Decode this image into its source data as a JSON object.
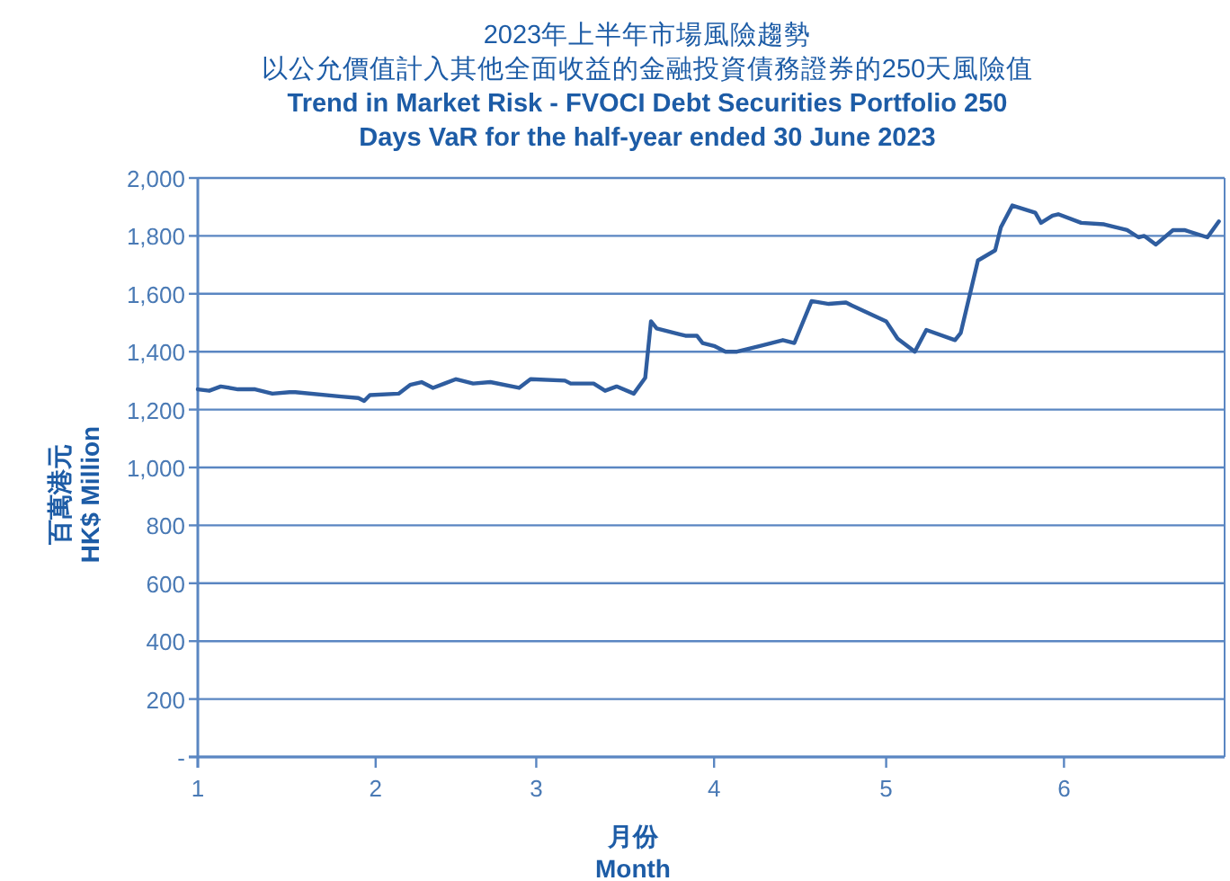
{
  "chart_data": {
    "type": "line",
    "title": "2023年上半年市場風險趨勢",
    "subtitle": "以公允價值計入其他全面收益的金融投資債務證券的250天風險值\nTrend in Market Risk - FVOCI Debt Securities Portfolio 250\nDays VaR for the half-year ended 30 June 2023",
    "xlabel": "月份\nMonth",
    "ylabel": "百萬港元\nHK$ Million",
    "x": [
      "2023-01-01",
      "2023-01-03",
      "2023-01-05",
      "2023-01-08",
      "2023-01-11",
      "2023-01-14",
      "2023-01-17",
      "2023-01-18",
      "2023-01-26",
      "2023-01-29",
      "2023-01-30",
      "2023-01-31",
      "2023-02-05",
      "2023-02-07",
      "2023-02-09",
      "2023-02-11",
      "2023-02-13",
      "2023-02-15",
      "2023-02-18",
      "2023-02-21",
      "2023-02-26",
      "2023-02-28",
      "2023-03-06",
      "2023-03-07",
      "2023-03-11",
      "2023-03-13",
      "2023-03-15",
      "2023-03-18",
      "2023-03-20",
      "2023-03-21",
      "2023-03-22",
      "2023-03-26",
      "2023-03-27",
      "2023-03-29",
      "2023-03-30",
      "2023-04-01",
      "2023-04-03",
      "2023-04-05",
      "2023-04-09",
      "2023-04-13",
      "2023-04-15",
      "2023-04-18",
      "2023-04-21",
      "2023-04-24",
      "2023-04-25",
      "2023-05-01",
      "2023-05-03",
      "2023-05-06",
      "2023-05-08",
      "2023-05-13",
      "2023-05-14",
      "2023-05-17",
      "2023-05-20",
      "2023-05-21",
      "2023-05-23",
      "2023-05-27",
      "2023-05-28",
      "2023-05-30",
      "2023-05-31",
      "2023-06-04",
      "2023-06-08",
      "2023-06-12",
      "2023-06-14",
      "2023-06-15",
      "2023-06-17",
      "2023-06-20",
      "2023-06-22",
      "2023-06-26",
      "2023-06-28"
    ],
    "series": [
      {
        "color": "#2f5d9f",
        "values": [
          1270,
          1265,
          1280,
          1270,
          1270,
          1255,
          1260,
          1260,
          1245,
          1240,
          1230,
          1250,
          1255,
          1285,
          1295,
          1275,
          1290,
          1305,
          1290,
          1295,
          1275,
          1305,
          1300,
          1290,
          1290,
          1265,
          1280,
          1255,
          1310,
          1505,
          1480,
          1460,
          1455,
          1455,
          1430,
          1420,
          1400,
          1400,
          1420,
          1440,
          1430,
          1575,
          1565,
          1570,
          1560,
          1505,
          1445,
          1400,
          1475,
          1440,
          1465,
          1715,
          1750,
          1830,
          1905,
          1880,
          1845,
          1870,
          1875,
          1845,
          1840,
          1820,
          1795,
          1800,
          1770,
          1820,
          1820,
          1795,
          1850
        ]
      }
    ],
    "xlim": [
      "2023-01-01",
      "2023-06-29"
    ],
    "xticks": [
      {
        "value": "2023-01-01",
        "label": "1"
      },
      {
        "value": "2023-02-01",
        "label": "2"
      },
      {
        "value": "2023-03-01",
        "label": "3"
      },
      {
        "value": "2023-04-01",
        "label": "4"
      },
      {
        "value": "2023-05-01",
        "label": "5"
      },
      {
        "value": "2023-06-01",
        "label": "6"
      }
    ],
    "ylim": [
      0,
      2000
    ],
    "yticks": [
      {
        "value": 0,
        "label": "-"
      },
      200,
      400,
      600,
      800,
      {
        "value": 1000,
        "label": "1,000"
      },
      {
        "value": 1200,
        "label": "1,200"
      },
      {
        "value": 1400,
        "label": "1,400"
      },
      {
        "value": 1600,
        "label": "1,600"
      },
      {
        "value": 1800,
        "label": "1,800"
      },
      {
        "value": 2000,
        "label": "2,000"
      }
    ],
    "grid": "y",
    "line_style": "solid"
  }
}
